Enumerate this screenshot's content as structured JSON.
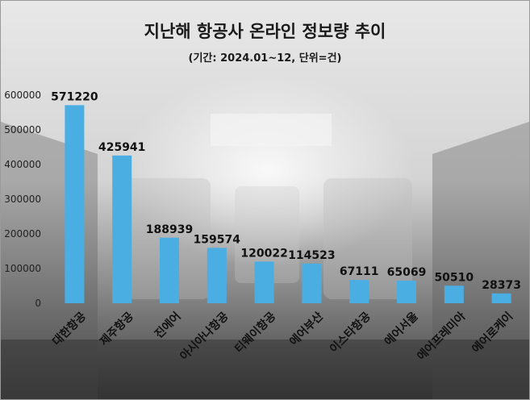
{
  "title": "지난해 항공사 온라인 정보량 추이",
  "subtitle": "(기간: 2024.01~12, 단위=건)",
  "colors": {
    "bar": "#4aaee3"
  },
  "chart_data": {
    "type": "bar",
    "categories": [
      "대한항공",
      "제주항공",
      "진에어",
      "아시아나항공",
      "티웨이항공",
      "에어부산",
      "이스타항공",
      "에어서울",
      "에어프레미아",
      "에어로케이"
    ],
    "values": [
      571220,
      425941,
      188939,
      159574,
      120022,
      114523,
      67111,
      65069,
      50510,
      28373
    ],
    "data_labels": [
      "571220",
      "425941",
      "188939",
      "159574",
      "120022",
      "114523",
      "67111",
      "65069",
      "50510",
      "28373"
    ],
    "ylim": [
      0,
      600000
    ],
    "yticks": [
      0,
      100000,
      200000,
      300000,
      400000,
      500000,
      600000
    ],
    "ytick_labels": [
      "0",
      "100000",
      "200000",
      "300000",
      "400000",
      "500000",
      "600000"
    ],
    "grid": false,
    "legend": "none"
  }
}
